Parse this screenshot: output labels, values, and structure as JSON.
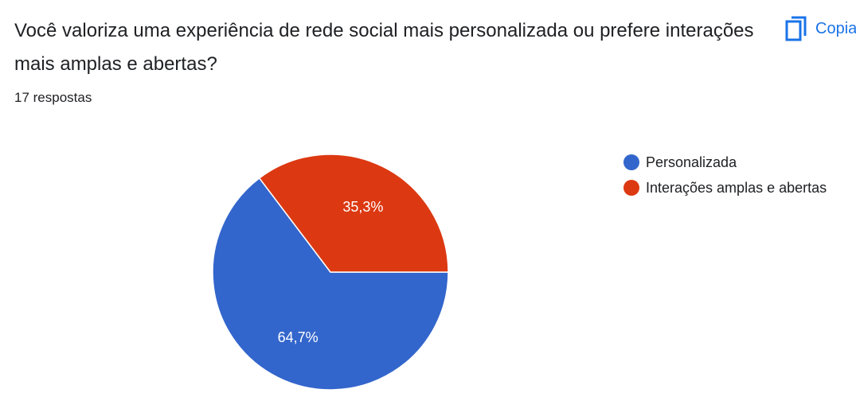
{
  "question": {
    "title": "Você valoriza uma experiência de rede social mais personalizada ou prefere interações mais amplas e abertas?",
    "responses": "17 respostas"
  },
  "toolbar": {
    "copy_label": "Copiar",
    "copy_icon": "copy-icon"
  },
  "chart_data": {
    "type": "pie",
    "categories": [
      "Personalizada",
      "Interações amplas e abertas"
    ],
    "values": [
      64.7,
      35.3
    ],
    "labels": [
      "64,7%",
      "35,3%"
    ],
    "colors": [
      "#3366cc",
      "#dc3912"
    ],
    "legend_position": "right"
  }
}
